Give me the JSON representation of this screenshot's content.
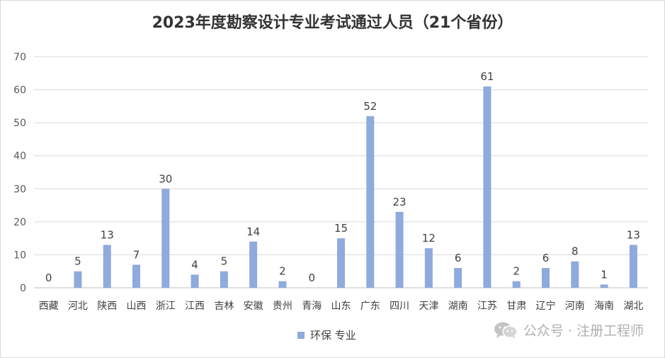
{
  "chart_data": {
    "type": "bar",
    "title": "2023年度勘察设计专业考试通过人员（21个省份）",
    "categories": [
      "西藏",
      "河北",
      "陕西",
      "山西",
      "浙江",
      "江西",
      "吉林",
      "安徽",
      "贵州",
      "青海",
      "山东",
      "广东",
      "四川",
      "天津",
      "湖南",
      "江苏",
      "甘肃",
      "辽宁",
      "河南",
      "海南",
      "湖北"
    ],
    "series": [
      {
        "name": "环保 专业",
        "values": [
          0,
          5,
          13,
          7,
          30,
          4,
          5,
          14,
          2,
          0,
          15,
          52,
          23,
          12,
          6,
          61,
          2,
          6,
          8,
          1,
          13
        ]
      }
    ],
    "ylim": [
      0,
      70
    ],
    "yticks": [
      0,
      10,
      20,
      30,
      40,
      50,
      60,
      70
    ],
    "grid": true,
    "data_labels": true,
    "legend_position": "bottom",
    "colors": {
      "bar": "#8faadc",
      "grid": "#d9d9d9",
      "axis": "#bfbfbf"
    }
  },
  "watermark": {
    "text": "公众号 · 注册工程师",
    "icon": "wechat-icon"
  }
}
